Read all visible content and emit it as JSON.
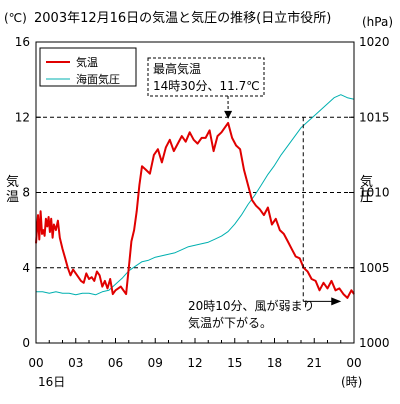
{
  "chart_data": {
    "type": "line",
    "title": "2003年12月16日の気温と気圧の推移(日立市役所)",
    "left_unit": "(℃)",
    "right_unit": "(hPa)",
    "left_axis_label": "気温",
    "right_axis_label": "気圧",
    "x_tick_labels": [
      "00",
      "03",
      "06",
      "09",
      "12",
      "15",
      "18",
      "21",
      "00"
    ],
    "x_tick_hours": [
      0,
      3,
      6,
      9,
      12,
      15,
      18,
      21,
      24
    ],
    "date_label": "16日",
    "x_unit_label": "(時)",
    "left_ylim": [
      0,
      16
    ],
    "left_ticks": [
      0,
      4,
      8,
      12,
      16
    ],
    "right_ylim": [
      1000,
      1020
    ],
    "right_ticks": [
      1000,
      1005,
      1010,
      1015,
      1020
    ],
    "grid": "horizontal dashed",
    "legend_position": "top-left",
    "series": [
      {
        "name": "気温",
        "color": "#e00000",
        "axis": "left",
        "x": [
          0,
          0.15,
          0.25,
          0.35,
          0.45,
          0.55,
          0.65,
          0.75,
          0.85,
          0.95,
          1.05,
          1.15,
          1.25,
          1.35,
          1.5,
          1.65,
          1.8,
          2.0,
          2.2,
          2.4,
          2.6,
          2.8,
          3.0,
          3.2,
          3.4,
          3.6,
          3.8,
          4.0,
          4.2,
          4.4,
          4.6,
          4.8,
          5.0,
          5.2,
          5.4,
          5.6,
          5.8,
          6.0,
          6.2,
          6.4,
          6.6,
          6.8,
          7.0,
          7.2,
          7.4,
          7.6,
          7.8,
          8.0,
          8.3,
          8.6,
          8.9,
          9.2,
          9.5,
          9.8,
          10.1,
          10.4,
          10.7,
          11.0,
          11.3,
          11.6,
          11.9,
          12.2,
          12.5,
          12.8,
          13.1,
          13.4,
          13.7,
          14.0,
          14.5,
          14.8,
          15.1,
          15.4,
          15.7,
          16.0,
          16.3,
          16.6,
          16.9,
          17.2,
          17.5,
          17.8,
          18.1,
          18.4,
          18.7,
          19.0,
          19.3,
          19.6,
          19.9,
          20.2,
          20.5,
          20.8,
          21.1,
          21.4,
          21.7,
          22.0,
          22.3,
          22.6,
          22.9,
          23.2,
          23.5,
          23.8,
          24.0
        ],
        "values": [
          5.3,
          6.8,
          5.5,
          7.0,
          5.8,
          6.0,
          5.7,
          6.6,
          6.2,
          6.7,
          5.9,
          6.6,
          5.6,
          6.3,
          6.0,
          6.5,
          5.6,
          5.0,
          4.5,
          4.0,
          3.6,
          3.9,
          3.7,
          3.5,
          3.3,
          3.2,
          3.7,
          3.4,
          3.5,
          3.3,
          3.8,
          3.6,
          3.0,
          3.3,
          2.9,
          3.4,
          2.6,
          2.8,
          2.9,
          3.0,
          2.8,
          2.6,
          4.0,
          5.4,
          6.0,
          7.0,
          8.4,
          9.4,
          9.2,
          9.0,
          10.0,
          10.3,
          9.6,
          10.4,
          10.8,
          10.2,
          10.6,
          11.0,
          10.7,
          11.2,
          10.8,
          10.6,
          10.9,
          10.9,
          11.3,
          10.2,
          11.0,
          11.2,
          11.7,
          10.9,
          10.5,
          10.3,
          9.2,
          8.4,
          7.6,
          7.3,
          7.1,
          6.8,
          7.2,
          6.3,
          6.6,
          6.0,
          5.8,
          5.4,
          5.0,
          4.6,
          4.5,
          4.0,
          3.8,
          3.4,
          3.3,
          2.8,
          3.2,
          2.9,
          3.3,
          2.8,
          2.9,
          2.6,
          2.4,
          2.8,
          2.6
        ]
      },
      {
        "name": "海面気圧",
        "color": "#00b0b0",
        "axis": "right",
        "x": [
          0,
          0.5,
          1.0,
          1.5,
          2.0,
          2.5,
          3.0,
          3.5,
          4.0,
          4.5,
          5.0,
          5.5,
          6.0,
          6.5,
          7.0,
          7.5,
          8.0,
          8.5,
          9.0,
          9.5,
          10.0,
          10.5,
          11.0,
          11.5,
          12.0,
          12.5,
          13.0,
          13.5,
          14.0,
          14.5,
          15.0,
          15.5,
          16.0,
          16.5,
          17.0,
          17.5,
          18.0,
          18.5,
          19.0,
          19.5,
          20.0,
          20.5,
          21.0,
          21.5,
          22.0,
          22.5,
          23.0,
          23.5,
          24.0
        ],
        "values": [
          1003.4,
          1003.4,
          1003.3,
          1003.4,
          1003.3,
          1003.3,
          1003.2,
          1003.3,
          1003.3,
          1003.2,
          1003.4,
          1003.5,
          1003.9,
          1004.3,
          1004.8,
          1005.1,
          1005.4,
          1005.5,
          1005.7,
          1005.8,
          1005.9,
          1006.0,
          1006.2,
          1006.4,
          1006.5,
          1006.6,
          1006.7,
          1006.9,
          1007.1,
          1007.4,
          1007.9,
          1008.5,
          1009.2,
          1009.8,
          1010.5,
          1011.2,
          1011.8,
          1012.5,
          1013.1,
          1013.7,
          1014.3,
          1014.7,
          1015.1,
          1015.5,
          1015.9,
          1016.3,
          1016.5,
          1016.3,
          1016.2
        ]
      }
    ],
    "annotations": [
      {
        "id": "max-temp",
        "lines": [
          "最高気温",
          "14時30分、11.7℃"
        ],
        "x": 14.5,
        "y": 11.7
      },
      {
        "id": "wind-drop",
        "lines": [
          "20時10分、風が弱まり",
          "気温が下がる。"
        ],
        "x": 20.17,
        "y": 2.0
      }
    ]
  }
}
